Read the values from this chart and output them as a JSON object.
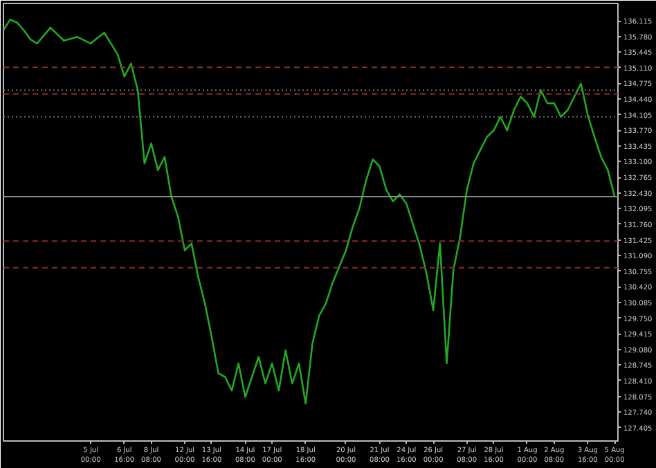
{
  "chart_data": {
    "type": "line",
    "grid": false,
    "line_style": "solid",
    "marker": "none",
    "ylim": [
      127.119,
      136.487
    ],
    "categories": [
      null,
      null,
      null,
      null,
      null,
      null,
      null,
      null,
      null,
      null,
      null,
      null,
      null,
      "5 Jul 00:00",
      null,
      null,
      null,
      null,
      "6 Jul 16:00",
      null,
      null,
      null,
      "8 Jul 08:00",
      null,
      null,
      null,
      null,
      "12 Jul 00:00",
      null,
      null,
      null,
      "13 Jul 16:00",
      null,
      null,
      null,
      null,
      "14 Jul 08:00",
      null,
      null,
      null,
      "17 Jul 00:00",
      null,
      null,
      null,
      null,
      "18 Jul 16:00",
      null,
      null,
      null,
      null,
      null,
      "20 Jul 00:00",
      null,
      null,
      null,
      null,
      "21 Jul 08:00",
      null,
      null,
      null,
      "24 Jul 16:00",
      null,
      null,
      null,
      "26 Jul 00:00",
      null,
      null,
      null,
      null,
      "27 Jul 08:00",
      null,
      null,
      null,
      "28 Jul 16:00",
      null,
      null,
      null,
      null,
      "1 Aug 00:00",
      null,
      null,
      null,
      "2 Aug 08:00",
      null,
      null,
      null,
      null,
      "3 Aug 16:00",
      null,
      null,
      null,
      "5 Aug 00:00"
    ],
    "yticks": [
      {
        "value": 127.405,
        "label": "127.405"
      },
      {
        "value": 127.74,
        "label": "127.740"
      },
      {
        "value": 128.075,
        "label": "128.075"
      },
      {
        "value": 128.41,
        "label": "128.410"
      },
      {
        "value": 128.745,
        "label": "128.745"
      },
      {
        "value": 129.08,
        "label": "129.080"
      },
      {
        "value": 129.415,
        "label": "129.415"
      },
      {
        "value": 129.75,
        "label": "129.750"
      },
      {
        "value": 130.085,
        "label": "130.085"
      },
      {
        "value": 130.42,
        "label": "130.420"
      },
      {
        "value": 130.755,
        "label": "130.755"
      },
      {
        "value": 131.09,
        "label": "131.090"
      },
      {
        "value": 131.425,
        "label": "131.425"
      },
      {
        "value": 131.76,
        "label": "131.760"
      },
      {
        "value": 132.095,
        "label": "132.095"
      },
      {
        "value": 132.43,
        "label": "132.430"
      },
      {
        "value": 132.765,
        "label": "132.765"
      },
      {
        "value": 133.1,
        "label": "133.100"
      },
      {
        "value": 133.435,
        "label": "133.435"
      },
      {
        "value": 133.77,
        "label": "133.770"
      },
      {
        "value": 134.105,
        "label": "134.105"
      },
      {
        "value": 134.44,
        "label": "134.440"
      },
      {
        "value": 134.775,
        "label": "134.775"
      },
      {
        "value": 135.11,
        "label": "135.110"
      },
      {
        "value": 135.445,
        "label": "135.445"
      },
      {
        "value": 135.78,
        "label": "135.780"
      },
      {
        "value": 136.115,
        "label": "136.115"
      }
    ],
    "ref_lines": [
      {
        "axis": "y",
        "value": 135.12,
        "color": "#8b2a2a",
        "line_style": "dashed"
      },
      {
        "axis": "y",
        "value": 134.55,
        "color": "#8b2a2a",
        "line_style": "dashed"
      },
      {
        "axis": "y",
        "value": 134.63,
        "color": "#6e6e6e",
        "line_style": "dotted"
      },
      {
        "axis": "y",
        "value": 134.06,
        "color": "#6e6e6e",
        "line_style": "dotted"
      },
      {
        "axis": "y",
        "value": 132.35,
        "color": "#8a8a8a",
        "line_style": "solid"
      },
      {
        "axis": "y",
        "value": 131.4,
        "color": "#8b2a2a",
        "line_style": "dashed"
      },
      {
        "axis": "y",
        "value": 130.83,
        "color": "#8b2a2a",
        "line_style": "dashed"
      }
    ],
    "series": [
      {
        "color": "#22a822",
        "values": [
          135.92,
          136.14,
          136.08,
          135.92,
          135.72,
          135.63,
          135.8,
          135.97,
          135.83,
          135.69,
          135.73,
          135.77,
          135.7,
          135.63,
          135.75,
          135.86,
          135.63,
          135.4,
          134.92,
          135.2,
          134.63,
          133.06,
          133.49,
          132.92,
          133.2,
          132.35,
          131.92,
          131.2,
          131.35,
          130.63,
          130.06,
          129.35,
          128.57,
          128.49,
          128.2,
          128.78,
          128.06,
          128.49,
          128.92,
          128.35,
          128.78,
          128.2,
          129.06,
          128.35,
          128.78,
          127.92,
          129.2,
          129.8,
          130.06,
          130.5,
          130.85,
          131.2,
          131.7,
          132.1,
          132.7,
          133.15,
          133.0,
          132.5,
          132.25,
          132.4,
          132.2,
          131.75,
          131.3,
          130.7,
          129.92,
          131.35,
          128.78,
          130.78,
          131.49,
          132.49,
          133.06,
          133.35,
          133.63,
          133.77,
          134.06,
          133.77,
          134.2,
          134.49,
          134.35,
          134.06,
          134.63,
          134.35,
          134.35,
          134.06,
          134.2,
          134.49,
          134.77,
          134.1,
          133.63,
          133.2,
          132.92,
          132.35
        ]
      }
    ]
  }
}
